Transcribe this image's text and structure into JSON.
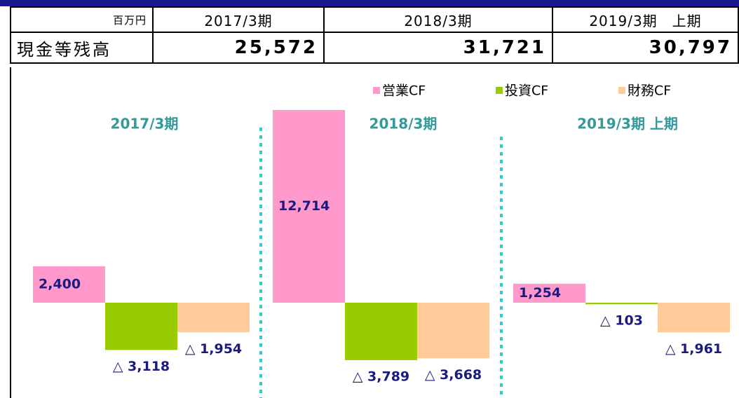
{
  "table": {
    "header": [
      "百万円",
      "2017/3期",
      "2018/3期",
      "2019/3期　上期"
    ],
    "rows": [
      [
        "現金等残高",
        "25,572",
        "31,721",
        "30,797"
      ]
    ]
  },
  "chart_data": {
    "type": "bar",
    "categories": [
      "2017/3期",
      "2018/3期",
      "2019/3期 上期"
    ],
    "series": [
      {
        "name": "営業CF",
        "color": "#ff99cc",
        "values": [
          2400,
          12714,
          1254
        ],
        "value_labels": [
          "2,400",
          "12,714",
          "1,254"
        ]
      },
      {
        "name": "投資CF",
        "color": "#99cc00",
        "values": [
          -3118,
          -3789,
          -103
        ],
        "value_labels": [
          "△ 3,118",
          "△ 3,789",
          "△ 103"
        ]
      },
      {
        "name": "財務CF",
        "color": "#ffcc99",
        "values": [
          -1954,
          -3668,
          -1961
        ],
        "value_labels": [
          "△ 1,954",
          "△ 3,668",
          "△ 1,961"
        ]
      }
    ]
  }
}
